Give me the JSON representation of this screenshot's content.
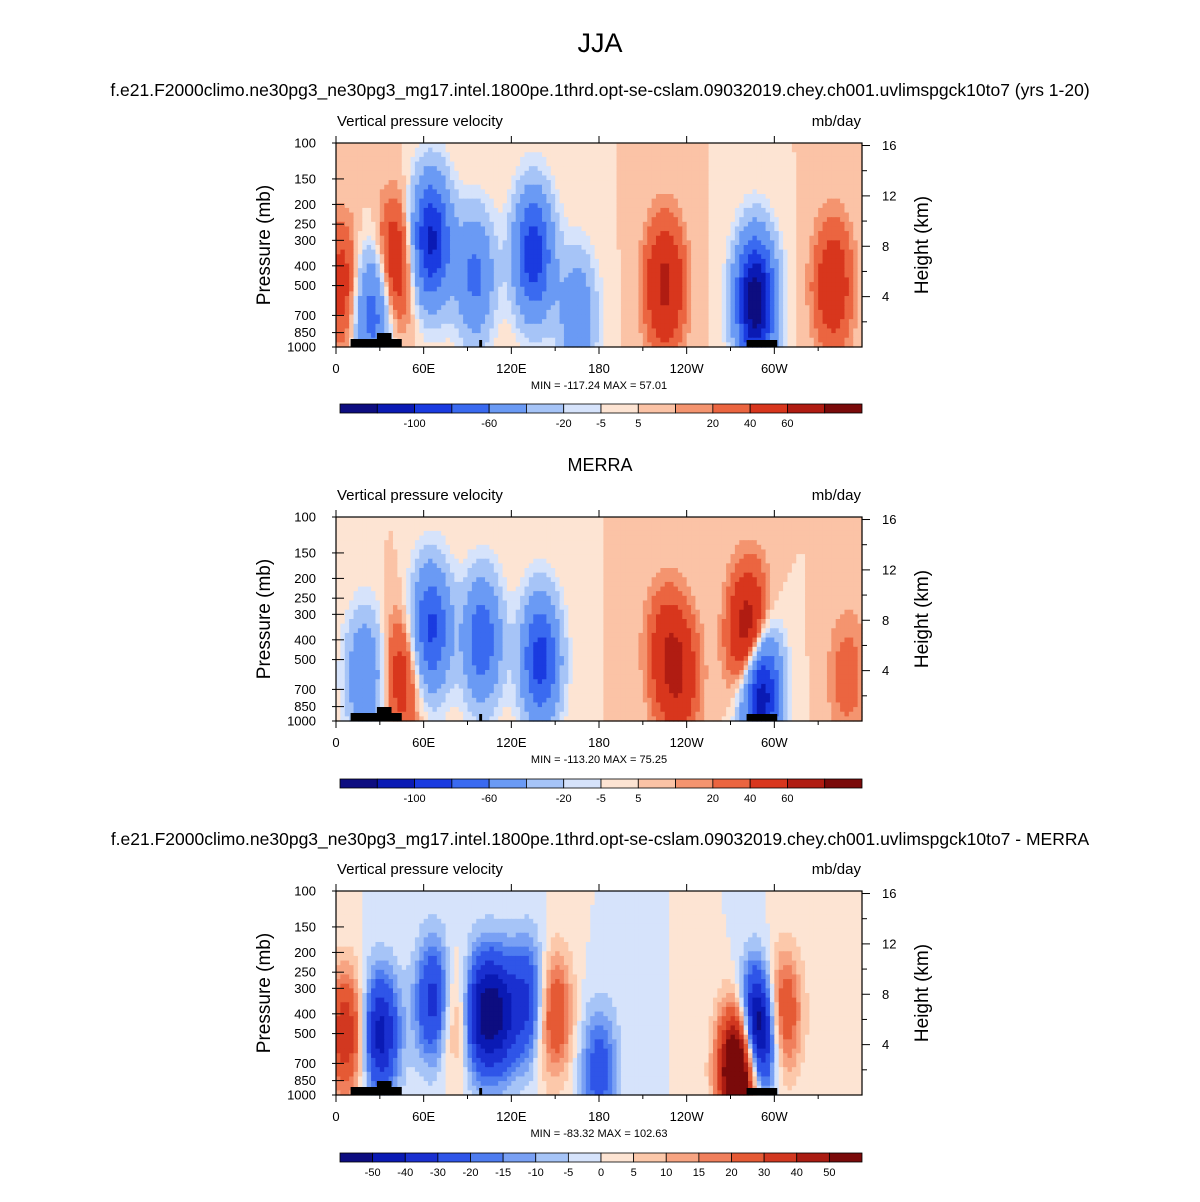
{
  "page": {
    "title": "JJA",
    "colors": {
      "cold_extreme": "#0d0d80",
      "warm_extreme": "#7a0a0a",
      "neutral": "#f4f6fb"
    }
  },
  "chart_data": [
    {
      "type": "heatmap",
      "title": "f.e21.F2000climo.ne30pg3_ne30pg3_mg17.intel.1800pe.1thrd.opt-se-cslam.09032019.chey.ch001.uvlimspgck10to7 (yrs 1-20)",
      "left_label": "Vertical pressure velocity",
      "right_label": "mb/day",
      "ylabel": "Pressure (mb)",
      "y2label": "Height (km)",
      "xticks": [
        "0",
        "60E",
        "120E",
        "180",
        "120W",
        "60W"
      ],
      "yticks": [
        "100",
        "150",
        "200",
        "250",
        "300",
        "400",
        "500",
        "700",
        "850",
        "1000"
      ],
      "y2ticks": [
        "4",
        "8",
        "12",
        "16"
      ],
      "stats": "MIN = -117.24  MAX =  57.01",
      "colorbar_labels": [
        "-100",
        "-60",
        "-20",
        "-5",
        "5",
        "20",
        "40",
        "60"
      ],
      "xlim": [
        0,
        360
      ],
      "ylim_mb": [
        1000,
        100
      ],
      "ascent_centers": [
        {
          "lon": 25,
          "mb": 650,
          "value": -55
        },
        {
          "lon": 65,
          "mb": 300,
          "value": -85
        },
        {
          "lon": 95,
          "mb": 450,
          "value": -45
        },
        {
          "lon": 135,
          "mb": 350,
          "value": -75
        },
        {
          "lon": 165,
          "mb": 700,
          "value": -35
        },
        {
          "lon": 287,
          "mb": 600,
          "value": -117
        }
      ],
      "descent_centers": [
        {
          "lon": 5,
          "mb": 500,
          "value": 30
        },
        {
          "lon": 40,
          "mb": 400,
          "value": 40
        },
        {
          "lon": 225,
          "mb": 500,
          "value": 45
        },
        {
          "lon": 340,
          "mb": 500,
          "value": 35
        }
      ]
    },
    {
      "type": "heatmap",
      "title": "MERRA",
      "left_label": "Vertical pressure velocity",
      "right_label": "mb/day",
      "ylabel": "Pressure (mb)",
      "y2label": "Height (km)",
      "xticks": [
        "0",
        "60E",
        "120E",
        "180",
        "120W",
        "60W"
      ],
      "yticks": [
        "100",
        "150",
        "200",
        "250",
        "300",
        "400",
        "500",
        "700",
        "850",
        "1000"
      ],
      "y2ticks": [
        "4",
        "8",
        "12",
        "16"
      ],
      "stats": "MIN = -113.20  MAX =  75.25",
      "colorbar_labels": [
        "-100",
        "-60",
        "-20",
        "-5",
        "5",
        "20",
        "40",
        "60"
      ],
      "xlim": [
        0,
        360
      ],
      "ylim_mb": [
        1000,
        100
      ],
      "ascent_centers": [
        {
          "lon": 20,
          "mb": 600,
          "value": -40
        },
        {
          "lon": 65,
          "mb": 350,
          "value": -65
        },
        {
          "lon": 100,
          "mb": 400,
          "value": -55
        },
        {
          "lon": 140,
          "mb": 500,
          "value": -70
        },
        {
          "lon": 290,
          "mb": 700,
          "value": -113
        }
      ],
      "descent_centers": [
        {
          "lon": 45,
          "mb": 600,
          "value": 30
        },
        {
          "lon": 225,
          "mb": 450,
          "value": 25
        },
        {
          "lon": 235,
          "mb": 600,
          "value": 35
        },
        {
          "lon": 283,
          "mb": 400,
          "value": 75
        },
        {
          "lon": 350,
          "mb": 600,
          "value": 15
        }
      ]
    },
    {
      "type": "heatmap",
      "title": "f.e21.F2000climo.ne30pg3_ne30pg3_mg17.intel.1800pe.1thrd.opt-se-cslam.09032019.chey.ch001.uvlimspgck10to7 - MERRA",
      "left_label": "Vertical pressure velocity",
      "right_label": "mb/day",
      "ylabel": "Pressure (mb)",
      "y2label": "Height (km)",
      "xticks": [
        "0",
        "60E",
        "120E",
        "180",
        "120W",
        "60W"
      ],
      "yticks": [
        "100",
        "150",
        "200",
        "250",
        "300",
        "400",
        "500",
        "700",
        "850",
        "1000"
      ],
      "y2ticks": [
        "4",
        "8",
        "12",
        "16"
      ],
      "stats": "MIN = -83.32  MAX = 102.63",
      "colorbar_labels": [
        "-50",
        "-40",
        "-30",
        "-20",
        "-15",
        "-10",
        "-5",
        "0",
        "5",
        "10",
        "15",
        "20",
        "30",
        "40",
        "50"
      ],
      "xlim": [
        0,
        360
      ],
      "ylim_mb": [
        1000,
        100
      ],
      "ascent_centers": [
        {
          "lon": 30,
          "mb": 500,
          "value": -45
        },
        {
          "lon": 68,
          "mb": 350,
          "value": -40
        },
        {
          "lon": 97,
          "mb": 400,
          "value": -45
        },
        {
          "lon": 112,
          "mb": 400,
          "value": -40
        },
        {
          "lon": 133,
          "mb": 350,
          "value": -35
        },
        {
          "lon": 180,
          "mb": 750,
          "value": -25
        },
        {
          "lon": 288,
          "mb": 500,
          "value": -83
        }
      ],
      "descent_centers": [
        {
          "lon": 7,
          "mb": 500,
          "value": 40
        },
        {
          "lon": 82,
          "mb": 400,
          "value": 30
        },
        {
          "lon": 148,
          "mb": 400,
          "value": 35
        },
        {
          "lon": 276,
          "mb": 750,
          "value": 102
        },
        {
          "lon": 305,
          "mb": 400,
          "value": 35
        }
      ]
    }
  ]
}
